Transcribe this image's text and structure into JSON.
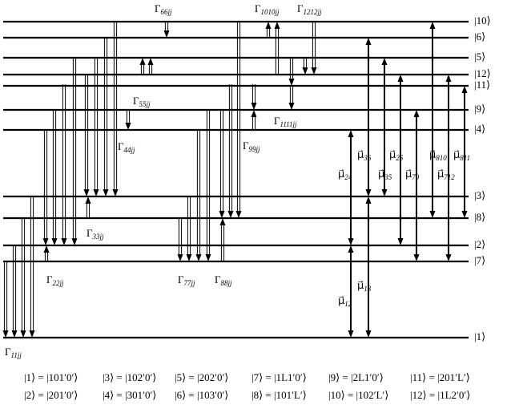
{
  "levels": [
    "|10⟩",
    "|6⟩",
    "|5⟩",
    "|12⟩",
    "|11⟩",
    "|9⟩",
    "|4⟩",
    "|3⟩",
    "|8⟩",
    "|2⟩",
    "|7⟩",
    "|1⟩"
  ],
  "decay_labels": [
    {
      "symbol": "Γ",
      "sub": "11jj"
    },
    {
      "symbol": "Γ",
      "sub": "22jj"
    },
    {
      "symbol": "Γ",
      "sub": "33jj"
    },
    {
      "symbol": "Γ",
      "sub": "44jj"
    },
    {
      "symbol": "Γ",
      "sub": "55jj"
    },
    {
      "symbol": "Γ",
      "sub": "66jj"
    },
    {
      "symbol": "Γ",
      "sub": "77jj"
    },
    {
      "symbol": "Γ",
      "sub": "88jj"
    },
    {
      "symbol": "Γ",
      "sub": "99jj"
    },
    {
      "symbol": "Γ",
      "sub": "1010jj"
    },
    {
      "symbol": "Γ",
      "sub": "1111jj"
    },
    {
      "symbol": "Γ",
      "sub": "1212jj"
    }
  ],
  "dipole_labels": [
    {
      "symbol": "μ⃗",
      "sub": "12"
    },
    {
      "symbol": "μ⃗",
      "sub": "13"
    },
    {
      "symbol": "μ⃗",
      "sub": "24"
    },
    {
      "symbol": "μ⃗",
      "sub": "36"
    },
    {
      "symbol": "μ⃗",
      "sub": "35"
    },
    {
      "symbol": "μ⃗",
      "sub": "25"
    },
    {
      "symbol": "μ⃗",
      "sub": "79"
    },
    {
      "symbol": "μ⃗",
      "sub": "810"
    },
    {
      "symbol": "μ⃗",
      "sub": "712"
    },
    {
      "symbol": "μ⃗",
      "sub": "811"
    }
  ],
  "legend": [
    [
      "|1⟩ = |101′0′⟩",
      "|3⟩ = |102′0′⟩",
      "|5⟩ = |202′0′⟩",
      "|7⟩ = |1L1′0′⟩",
      "|9⟩ = |2L1′0′⟩",
      "|11⟩ = |201′L′⟩"
    ],
    [
      "|2⟩ = |201′0′⟩",
      "|4⟩ = |301′0′⟩",
      "|6⟩ = |103′0′⟩",
      "|8⟩ = |101′L′⟩",
      "|10⟩ = |102′L′⟩",
      "|12⟩ = |1L2′0′⟩"
    ]
  ]
}
